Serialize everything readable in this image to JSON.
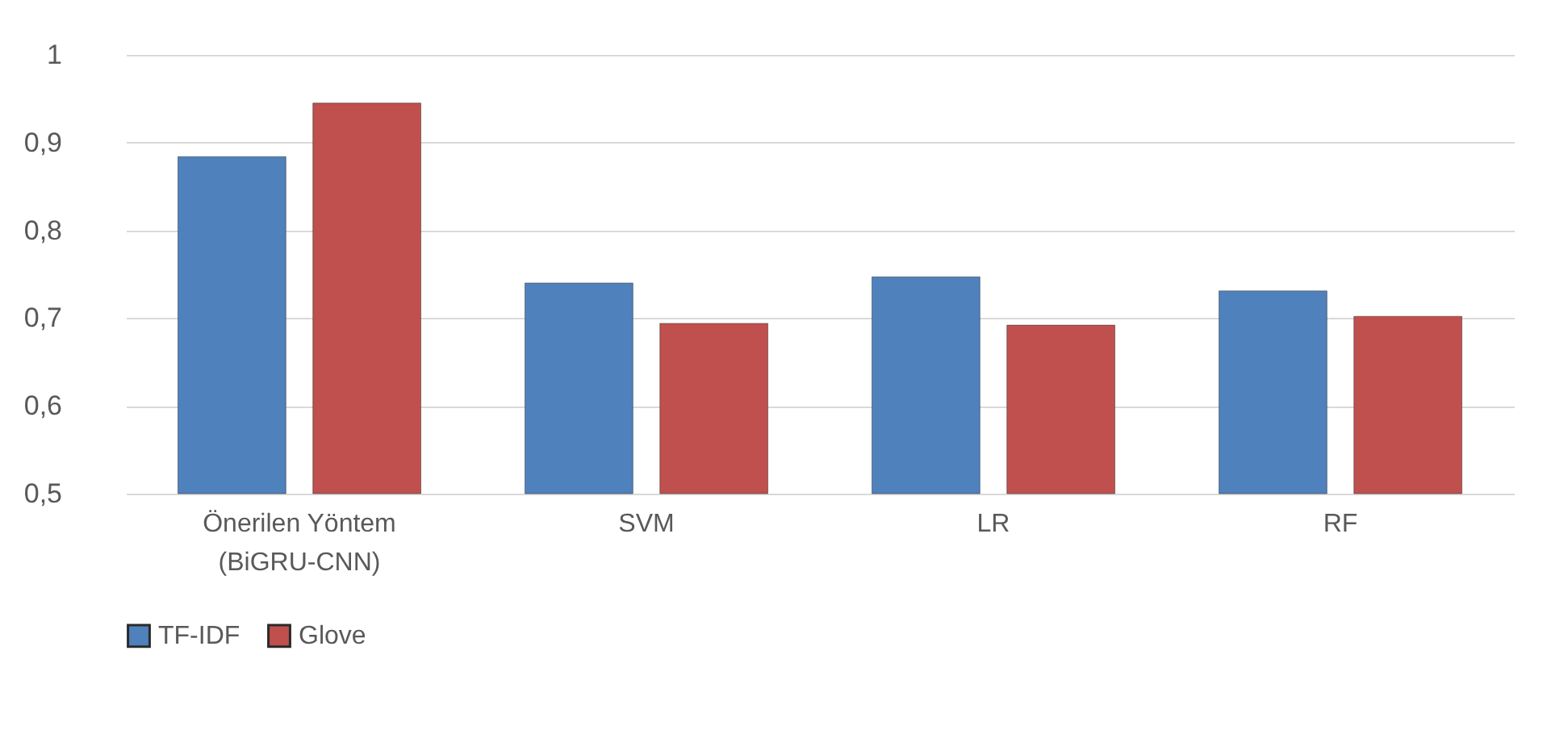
{
  "chart_data": {
    "type": "bar",
    "categories": [
      "Önerilen Yöntem\n(BiGRU-CNN)",
      "SVM",
      "LR",
      "RF"
    ],
    "series": [
      {
        "name": "TF-IDF",
        "color": "#4f81bd",
        "values": [
          0.884,
          0.74,
          0.747,
          0.731
        ]
      },
      {
        "name": "Glove",
        "color": "#c0504d",
        "values": [
          0.945,
          0.694,
          0.692,
          0.702
        ]
      }
    ],
    "ylim": [
      0.5,
      1
    ],
    "yticks": [
      {
        "value": 0.5,
        "label": "0,5"
      },
      {
        "value": 0.6,
        "label": "0,6"
      },
      {
        "value": 0.7,
        "label": "0,7"
      },
      {
        "value": 0.8,
        "label": "0,8"
      },
      {
        "value": 0.9,
        "label": "0,9"
      },
      {
        "value": 1,
        "label": "1"
      }
    ],
    "grid": "y",
    "legend": "bottom"
  }
}
